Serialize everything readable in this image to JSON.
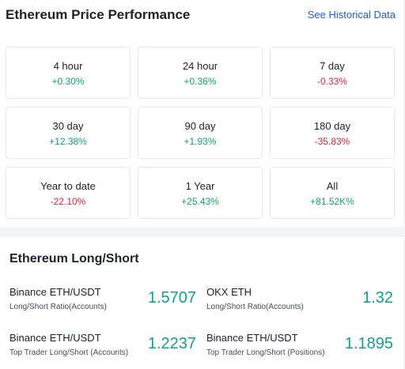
{
  "header": {
    "title": "Ethereum Price Performance",
    "link": "See Historical Data"
  },
  "performance": {
    "cells": [
      {
        "label": "4 hour",
        "change": "+0.30%"
      },
      {
        "label": "24 hour",
        "change": "+0.36%"
      },
      {
        "label": "7 day",
        "change": "-0.33%"
      },
      {
        "label": "30 day",
        "change": "+12.38%"
      },
      {
        "label": "90 day",
        "change": "+1.93%"
      },
      {
        "label": "180 day",
        "change": "-35.83%"
      },
      {
        "label": "Year to date",
        "change": "-22.10%"
      },
      {
        "label": "1 Year",
        "change": "+25.43%"
      },
      {
        "label": "All",
        "change": "+81.52K%"
      }
    ]
  },
  "long_short": {
    "title": "Ethereum Long/Short",
    "items": [
      {
        "name": "Binance ETH/USDT",
        "subtitle": "Long/Short Ratio(Accounts)",
        "value": "1.5707"
      },
      {
        "name": "OKX ETH",
        "subtitle": "Long/Short Ratio(Accounts)",
        "value": "1.32"
      },
      {
        "name": "Binance ETH/USDT",
        "subtitle": "Top Trader Long/Short (Accounts)",
        "value": "1.2237"
      },
      {
        "name": "Binance ETH/USDT",
        "subtitle": "Top Trader Long/Short (Positions)",
        "value": "1.1895"
      }
    ]
  }
}
